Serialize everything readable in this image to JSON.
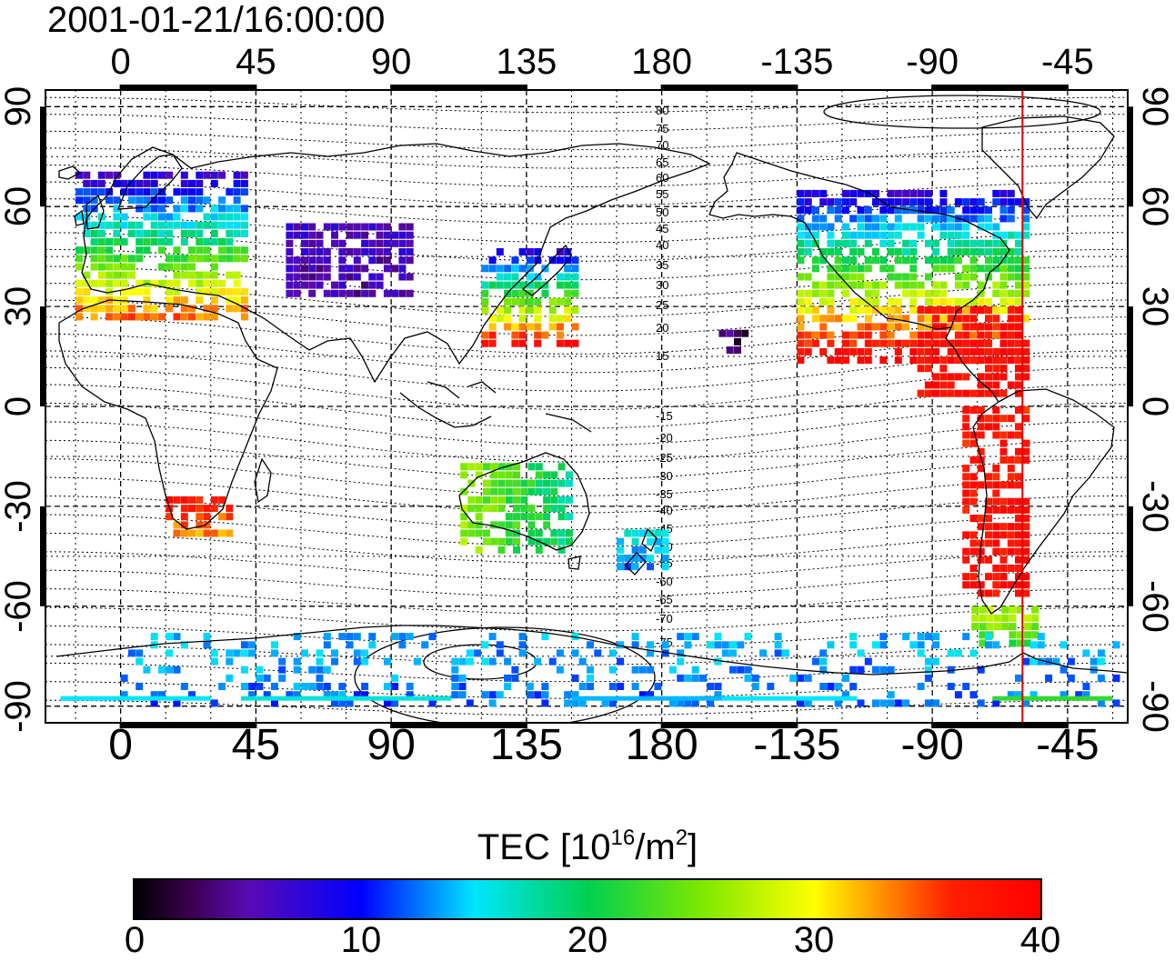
{
  "title": "2001-01-21/16:00:00",
  "lon_ticks": [
    {
      "lon": 0,
      "label": "0"
    },
    {
      "lon": 45,
      "label": "45"
    },
    {
      "lon": 90,
      "label": "90"
    },
    {
      "lon": 135,
      "label": "135"
    },
    {
      "lon": 180,
      "label": "180"
    },
    {
      "lon": 225,
      "label": "-135"
    },
    {
      "lon": 270,
      "label": "-90"
    },
    {
      "lon": 315,
      "label": "-45"
    }
  ],
  "lat_ticks": [
    {
      "lat": 90,
      "label": "90"
    },
    {
      "lat": 60,
      "label": "60"
    },
    {
      "lat": 30,
      "label": "30"
    },
    {
      "lat": 0,
      "label": "0"
    },
    {
      "lat": -30,
      "label": "-30"
    },
    {
      "lat": -60,
      "label": "-60"
    },
    {
      "lat": -90,
      "label": "-90"
    }
  ],
  "map_extent": {
    "lon_min": -25,
    "lon_max": 335,
    "lat_min": -95,
    "lat_max": 95
  },
  "meridian_marker": {
    "lon": 300,
    "color": "#e00000"
  },
  "contour_labels": [
    "80",
    "75",
    "70",
    "65",
    "60",
    "55",
    "50",
    "45",
    "40",
    "35",
    "30",
    "25",
    "20",
    "15",
    "-15",
    "-20",
    "-25",
    "-30",
    "-35",
    "-40",
    "-45",
    "-50",
    "-55",
    "-60",
    "-65",
    "-70",
    "-75"
  ],
  "colorbar": {
    "label_text": "TEC  [10",
    "label_exp1": "16",
    "label_mid": "/m",
    "label_exp2": "2",
    "label_end": "]",
    "min": 0,
    "max": 40,
    "ticks": [
      {
        "value": 0,
        "label": "0"
      },
      {
        "value": 10,
        "label": "10"
      },
      {
        "value": 20,
        "label": "20"
      },
      {
        "value": 30,
        "label": "30"
      },
      {
        "value": 40,
        "label": "40"
      }
    ],
    "stops": [
      {
        "value": 0,
        "color": "#000000"
      },
      {
        "value": 2.5,
        "color": "#3c0050"
      },
      {
        "value": 5,
        "color": "#5a0ab4"
      },
      {
        "value": 10,
        "color": "#0000ff"
      },
      {
        "value": 15,
        "color": "#00e6ff"
      },
      {
        "value": 20,
        "color": "#00d050"
      },
      {
        "value": 25,
        "color": "#7ce800"
      },
      {
        "value": 30,
        "color": "#ffff00"
      },
      {
        "value": 33,
        "color": "#ff9000"
      },
      {
        "value": 36,
        "color": "#ff2000"
      },
      {
        "value": 40,
        "color": "#ff0000"
      }
    ]
  },
  "tec_regions": [
    {
      "name": "europe",
      "lon": [
        -15,
        40
      ],
      "lat": [
        28,
        72
      ],
      "tec": [
        34,
        6
      ],
      "grad": "lat"
    },
    {
      "name": "north-america",
      "lon": [
        225,
        300
      ],
      "lat": [
        15,
        65
      ],
      "tec": [
        40,
        8
      ],
      "grad": "lat"
    },
    {
      "name": "caribbean",
      "lon": [
        265,
        300
      ],
      "lat": [
        5,
        30
      ],
      "tec": [
        38,
        38
      ],
      "grad": "lat"
    },
    {
      "name": "south-america",
      "lon": [
        280,
        300
      ],
      "lat": [
        -55,
        2
      ],
      "tec": [
        38,
        37
      ],
      "grad": "lat"
    },
    {
      "name": "south-africa",
      "lon": [
        15,
        35
      ],
      "lat": [
        -37,
        -25
      ],
      "tec": [
        33,
        38
      ],
      "grad": "lat"
    },
    {
      "name": "east-asia",
      "lon": [
        120,
        150
      ],
      "lat": [
        20,
        48
      ],
      "tec": [
        38,
        7
      ],
      "grad": "lat"
    },
    {
      "name": "central-asia",
      "lon": [
        55,
        95
      ],
      "lat": [
        35,
        55
      ],
      "tec": [
        5,
        6
      ],
      "grad": "lat"
    },
    {
      "name": "australia",
      "lon": [
        113,
        150
      ],
      "lat": [
        -42,
        -15
      ],
      "tec": [
        26,
        18
      ],
      "grad": "lon"
    },
    {
      "name": "new-zealand",
      "lon": [
        165,
        180
      ],
      "lat": [
        -47,
        -35
      ],
      "tec": [
        13,
        16
      ],
      "grad": "lat"
    },
    {
      "name": "hawaii",
      "lon": [
        199,
        207
      ],
      "lat": [
        18,
        24
      ],
      "tec": [
        3,
        3
      ],
      "grad": "lat"
    },
    {
      "name": "patagonia",
      "lon": [
        283,
        305
      ],
      "lat": [
        -70,
        -58
      ],
      "tec": [
        22,
        28
      ],
      "grad": "lat"
    },
    {
      "name": "antarctica",
      "lon": [
        0,
        330
      ],
      "lat": [
        -88,
        -68
      ],
      "tec": [
        12,
        14
      ],
      "grad": "lat"
    }
  ]
}
